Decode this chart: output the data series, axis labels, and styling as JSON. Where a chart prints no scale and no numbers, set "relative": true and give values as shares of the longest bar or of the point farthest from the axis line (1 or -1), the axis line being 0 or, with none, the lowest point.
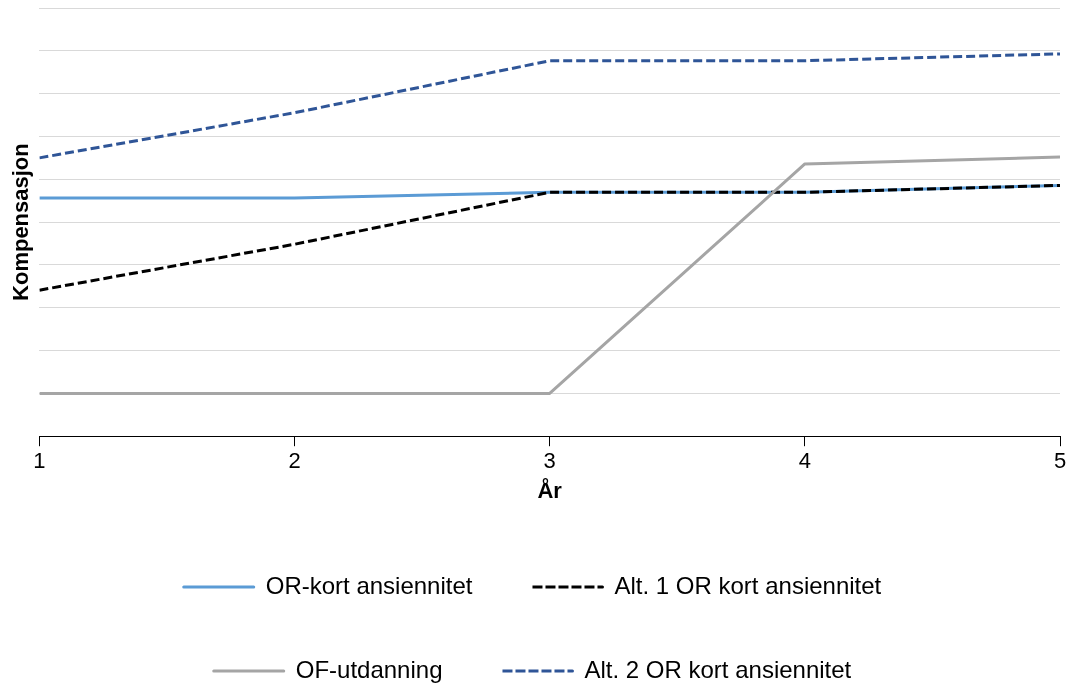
{
  "chart_data": {
    "type": "line",
    "relative": true,
    "xlabel": "År",
    "ylabel": "Kompensasjon",
    "xlim": [
      1,
      5
    ],
    "xticks": [
      1,
      2,
      3,
      4,
      5
    ],
    "grid": "y",
    "legend": "bottom",
    "marker": "none",
    "x": [
      1,
      2,
      3,
      4,
      5
    ],
    "series": [
      {
        "name": "OR-kort ansiennitet",
        "color": "#5b9bd5",
        "line_style": "solid",
        "values": [
          0.623,
          0.623,
          0.638,
          0.638,
          0.656
        ]
      },
      {
        "name": "Alt. 1 OR kort ansiennitet",
        "color": "#000000",
        "line_style": "dashed",
        "values": [
          0.382,
          0.502,
          0.638,
          0.638,
          0.656
        ]
      },
      {
        "name": "OF-utdanning",
        "color": "#a5a5a5",
        "line_style": "solid",
        "values": [
          0.112,
          0.112,
          0.112,
          0.712,
          0.73
        ]
      },
      {
        "name": "Alt. 2 OR kort ansiennitet",
        "color": "#2f5597",
        "line_style": "dashed",
        "values": [
          0.728,
          0.846,
          0.982,
          0.982,
          1
        ]
      }
    ]
  }
}
